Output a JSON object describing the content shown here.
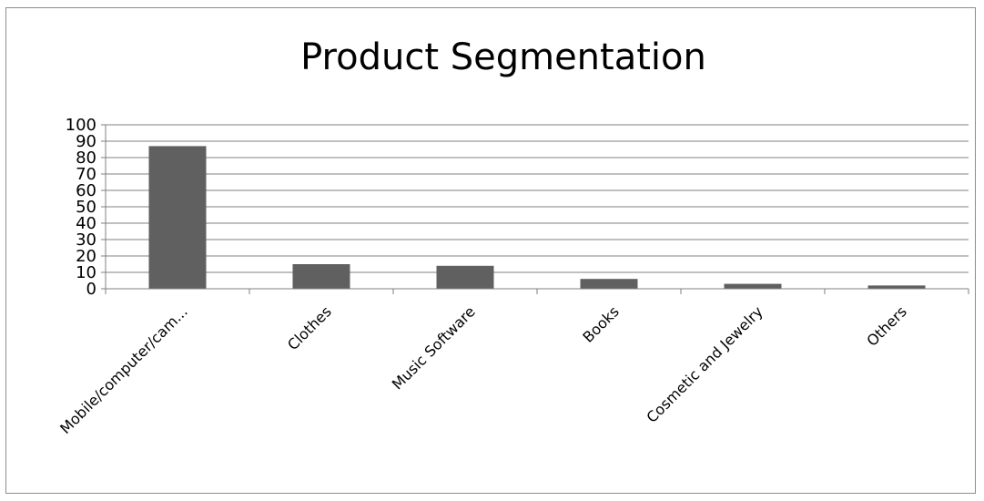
{
  "chart_data": {
    "type": "bar",
    "title": "Product Segmentation",
    "categories": [
      "Mobile/computer/cam...",
      "Clothes",
      "Music Software",
      "Books",
      "Cosmetic and Jewelry",
      "Others"
    ],
    "series": [
      {
        "values": [
          87,
          15,
          14,
          6,
          3,
          2
        ]
      }
    ],
    "ylim": [
      0,
      100
    ],
    "yticks": [
      0,
      10,
      20,
      30,
      40,
      50,
      60,
      70,
      80,
      90,
      100
    ],
    "grid": true,
    "legend": "none",
    "colors": {
      "bar": "#606060",
      "grid": "#808080",
      "axis": "#808080",
      "frame": "#8c8c8c"
    }
  }
}
